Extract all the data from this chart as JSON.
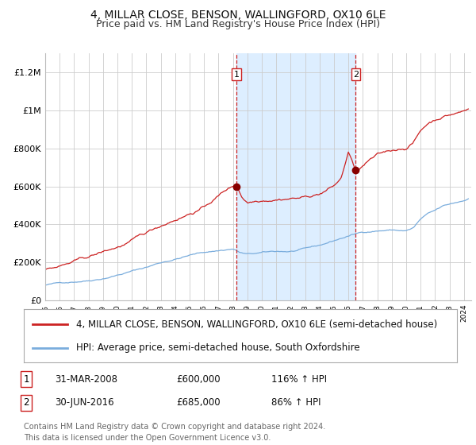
{
  "title": "4, MILLAR CLOSE, BENSON, WALLINGFORD, OX10 6LE",
  "subtitle": "Price paid vs. HM Land Registry's House Price Index (HPI)",
  "background_color": "#ffffff",
  "plot_bg_color": "#ffffff",
  "grid_color": "#cccccc",
  "hpi_line_color": "#7aaddd",
  "price_line_color": "#cc2222",
  "marker_color": "#880000",
  "vline_color": "#cc2222",
  "shade_color": "#ddeeff",
  "ylim": [
    0,
    1300000
  ],
  "yticks": [
    0,
    200000,
    400000,
    600000,
    800000,
    1000000,
    1200000
  ],
  "ytick_labels": [
    "£0",
    "£200K",
    "£400K",
    "£600K",
    "£800K",
    "£1M",
    "£1.2M"
  ],
  "xstart_year": 1995,
  "xend_year": 2024,
  "sale1_date": 2008.25,
  "sale1_price": 600000,
  "sale1_label": "1",
  "sale2_date": 2016.5,
  "sale2_price": 685000,
  "sale2_label": "2",
  "legend_line1": "4, MILLAR CLOSE, BENSON, WALLINGFORD, OX10 6LE (semi-detached house)",
  "legend_line2": "HPI: Average price, semi-detached house, South Oxfordshire",
  "table_row1": [
    "1",
    "31-MAR-2008",
    "£600,000",
    "116% ↑ HPI"
  ],
  "table_row2": [
    "2",
    "30-JUN-2016",
    "£685,000",
    "86% ↑ HPI"
  ],
  "footnote": "Contains HM Land Registry data © Crown copyright and database right 2024.\nThis data is licensed under the Open Government Licence v3.0.",
  "title_fontsize": 10,
  "subtitle_fontsize": 9,
  "tick_fontsize": 8,
  "legend_fontsize": 8.5,
  "table_fontsize": 8.5,
  "footnote_fontsize": 7
}
